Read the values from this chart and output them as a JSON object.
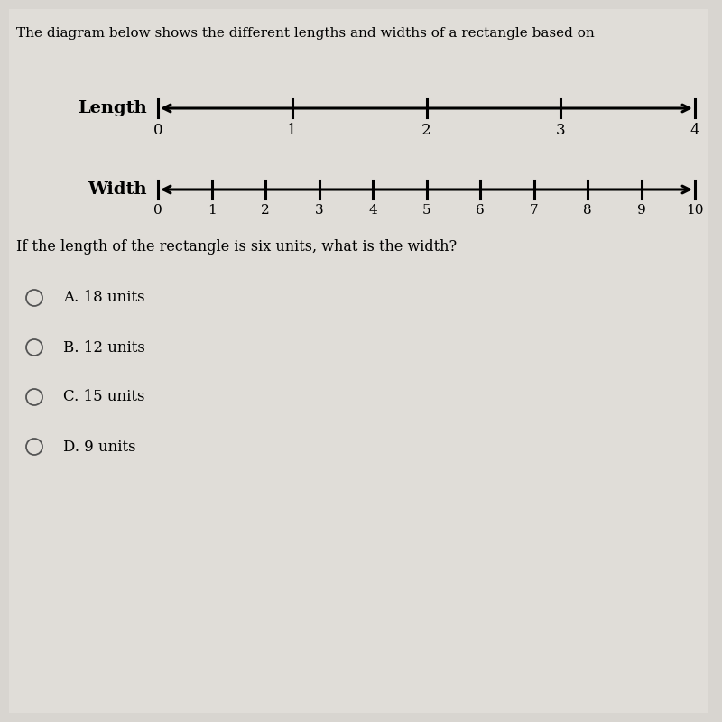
{
  "title_short": "The diagram below shows the different lengths and widths of a rectangle based on",
  "length_label": "Length",
  "width_label": "Width",
  "length_ticks": [
    0,
    1,
    2,
    3,
    4
  ],
  "width_ticks": [
    0,
    1,
    2,
    3,
    4,
    5,
    6,
    7,
    8,
    9,
    10
  ],
  "question": "If the length of the rectangle is six units, what is the width?",
  "choices": [
    "A. 18 units",
    "B. 12 units",
    "C. 15 units",
    "D. 9 units"
  ],
  "bg_color": "#d8d5d0",
  "content_bg": "#e8e6e2",
  "text_color": "#000000",
  "line_color": "#000000",
  "title_fontsize": 11,
  "label_fontsize": 14,
  "tick_fontsize": 12,
  "question_fontsize": 11.5,
  "choice_fontsize": 12
}
